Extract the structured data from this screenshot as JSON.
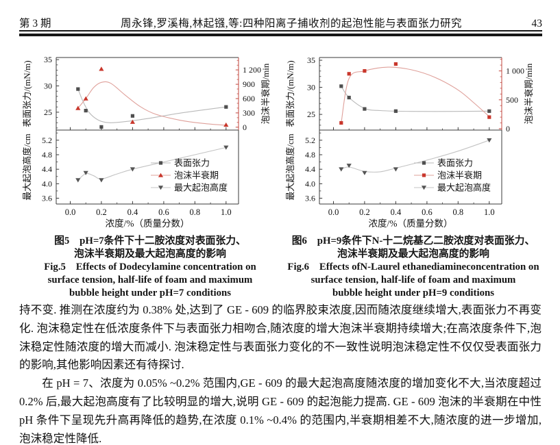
{
  "header": {
    "issue": "第 3 期",
    "running_title": "周永锋,罗溪梅,林起镪,等:四种阳离子捕收剂的起泡性能与表面张力研究",
    "page_number": "43"
  },
  "figures": [
    {
      "caption_cn": [
        "图5　pH=7条件下十二胺浓度对表面张力、",
        "泡沫半衰期及最大起泡高度的影响"
      ],
      "caption_en": [
        "Fig.5　Effects of Dodecylamine concentration on",
        "surface tension, half-life of foam and maximum",
        "bubble height under pH=7 conditions"
      ]
    },
    {
      "caption_cn": [
        "图6　pH=9条件下N-十二烷基乙二胺浓度对表面张力、",
        "泡沫半衰期及最大起泡高度的影响"
      ],
      "caption_en": [
        "Fig.6　Effects ofN-Laurel ethanediamineconcentration on",
        "surface tension, half-life of foam and maximum",
        "bubble height under pH=9 conditions"
      ]
    }
  ],
  "chart_data": [
    {
      "type": "line",
      "x_values": [
        0.05,
        0.1,
        0.2,
        0.4,
        1.0
      ],
      "xlabel": "浓度/%（质量分数）",
      "xlim": [
        -0.09,
        1.08
      ],
      "x_ticks": [
        0.0,
        0.2,
        0.4,
        0.6,
        0.8,
        1.0
      ],
      "x_tick_labels": [
        "0.0",
        "0.2",
        "0.4",
        "0.6",
        "0.8",
        "1.0"
      ],
      "x_minor_step": 0.1,
      "top_panel": {
        "left_axis": {
          "label": "表面张力/(mN/m)",
          "lim": [
            21.6,
            35.4
          ],
          "ticks": [
            25,
            30,
            35
          ],
          "tick_labels": [
            "25",
            "30",
            "35"
          ],
          "minor_step": 1,
          "color": "#3a3a3a"
        },
        "right_axis": {
          "label": "泡沫半衰期/min",
          "lim": [
            -60,
            1460
          ],
          "ticks": [
            0,
            300,
            600,
            900,
            1200
          ],
          "tick_labels": [
            "0",
            "300",
            "600",
            "900",
            "1 200"
          ],
          "minor_step": 100,
          "color": "#c0453c"
        },
        "series": [
          {
            "name": "表面张力",
            "axis": "left",
            "marker": "square",
            "marker_color": "#4f4f4f",
            "line_color": "#b9b9b9",
            "values": [
              29.4,
              25.3,
              22.2,
              24.3,
              26.0
            ],
            "curve": [
              [
                0.05,
                29.4
              ],
              [
                0.08,
                27.2
              ],
              [
                0.12,
                25.0
              ],
              [
                0.18,
                23.5
              ],
              [
                0.25,
                23.0
              ],
              [
                0.35,
                23.2
              ],
              [
                0.5,
                23.8
              ],
              [
                0.7,
                24.8
              ],
              [
                1.0,
                26.0
              ]
            ]
          },
          {
            "name": "泡沫半衰期",
            "axis": "right",
            "marker": "triangle-up",
            "marker_color": "#c9372c",
            "line_color": "#dfa09a",
            "values": [
              400,
              600,
              1220,
              110,
              50
            ],
            "curve": [
              [
                0.05,
                400
              ],
              [
                0.1,
                600
              ],
              [
                0.15,
                830
              ],
              [
                0.2,
                940
              ],
              [
                0.26,
                920
              ],
              [
                0.35,
                680
              ],
              [
                0.45,
                430
              ],
              [
                0.55,
                270
              ],
              [
                0.7,
                150
              ],
              [
                0.85,
                80
              ],
              [
                1.0,
                40
              ]
            ]
          }
        ]
      },
      "bottom_panel": {
        "left_axis": {
          "label": "最大起泡高度/cm",
          "lim": [
            3.44,
            5.48
          ],
          "ticks": [
            3.6,
            4.0,
            4.4,
            4.8,
            5.2
          ],
          "tick_labels": [
            "3.6",
            "4.0",
            "4.4",
            "4.8",
            "5.2"
          ],
          "minor_step": 0.2,
          "color": "#3a3a3a"
        },
        "series": [
          {
            "name": "最大起泡高度",
            "axis": "left",
            "marker": "triangle-down",
            "marker_color": "#555555",
            "line_color": "#c3c3c3",
            "values": [
              4.1,
              4.3,
              4.1,
              4.4,
              5.0
            ],
            "curve": [
              [
                0.05,
                4.1
              ],
              [
                0.1,
                4.28
              ],
              [
                0.15,
                4.22
              ],
              [
                0.2,
                4.13
              ],
              [
                0.3,
                4.27
              ],
              [
                0.4,
                4.4
              ],
              [
                0.6,
                4.6
              ],
              [
                0.8,
                4.8
              ],
              [
                1.0,
                5.0
              ]
            ]
          }
        ]
      }
    },
    {
      "type": "line",
      "x_values": [
        0.05,
        0.1,
        0.2,
        0.4,
        1.0
      ],
      "xlabel": "浓度/%（质量分数）",
      "xlim": [
        -0.09,
        1.08
      ],
      "x_ticks": [
        0.0,
        0.2,
        0.4,
        0.6,
        0.8,
        1.0
      ],
      "x_tick_labels": [
        "0.0",
        "0.2",
        "0.4",
        "0.6",
        "0.8",
        "1.0"
      ],
      "x_minor_step": 0.1,
      "top_panel": {
        "left_axis": {
          "label": "表面张力/(mN/m)",
          "lim": [
            22.1,
            35.5
          ],
          "ticks": [
            25,
            30,
            35
          ],
          "tick_labels": [
            "25",
            "30",
            "35"
          ],
          "minor_step": 1,
          "color": "#3a3a3a"
        },
        "right_axis": {
          "label": "泡沫半衰期/min",
          "lim": [
            -24,
            1232
          ],
          "ticks": [
            0,
            500,
            1000
          ],
          "tick_labels": [
            "0",
            "500",
            "1 000"
          ],
          "minor_step": 100,
          "color": "#c0453c"
        },
        "series": [
          {
            "name": "表面张力",
            "axis": "left",
            "marker": "square",
            "marker_color": "#4f4f4f",
            "line_color": "#b9b9b9",
            "values": [
              30.2,
              28.1,
              26.0,
              25.6,
              25.6
            ],
            "curve": [
              [
                0.05,
                30.2
              ],
              [
                0.1,
                28.1
              ],
              [
                0.2,
                26.1
              ],
              [
                0.3,
                25.7
              ],
              [
                0.5,
                25.55
              ],
              [
                0.8,
                25.55
              ],
              [
                1.0,
                25.6
              ]
            ]
          },
          {
            "name": "泡沫半衰期",
            "axis": "right",
            "marker": "square",
            "marker_color": "#c9372c",
            "line_color": "#dfa09a",
            "values": [
              100,
              950,
              1000,
              1120,
              200
            ],
            "curve": [
              [
                0.05,
                100
              ],
              [
                0.1,
                870
              ],
              [
                0.2,
                1000
              ],
              [
                0.35,
                1065
              ],
              [
                0.5,
                1020
              ],
              [
                0.65,
                890
              ],
              [
                0.8,
                670
              ],
              [
                0.9,
                450
              ],
              [
                1.0,
                210
              ]
            ]
          }
        ]
      },
      "bottom_panel": {
        "left_axis": {
          "label": "最大起泡高度/cm",
          "lim": [
            3.44,
            5.48
          ],
          "ticks": [
            3.6,
            4.0,
            4.4,
            4.8,
            5.2
          ],
          "tick_labels": [
            "3.6",
            "4.0",
            "4.4",
            "4.8",
            "5.2"
          ],
          "minor_step": 0.2,
          "color": "#3a3a3a"
        },
        "series": [
          {
            "name": "最大起泡高度",
            "axis": "left",
            "marker": "triangle-down",
            "marker_color": "#555555",
            "line_color": "#c3c3c3",
            "values": [
              4.4,
              4.5,
              4.3,
              4.4,
              5.2
            ],
            "curve": [
              [
                0.05,
                4.4
              ],
              [
                0.1,
                4.46
              ],
              [
                0.2,
                4.34
              ],
              [
                0.3,
                4.33
              ],
              [
                0.4,
                4.43
              ],
              [
                0.6,
                4.65
              ],
              [
                0.8,
                4.9
              ],
              [
                1.0,
                5.2
              ]
            ]
          }
        ]
      }
    }
  ],
  "body": {
    "paragraphs": [
      "持不变. 推测在浓度约为 0.38% 处,达到了 GE - 609 的临界胶束浓度,因而随浓度继续增大,表面张力不再变化. 泡沫稳定性在低浓度条件下与表面张力相吻合,随浓度的增大泡沫半衰期持续增大;在高浓度条件下,泡沫稳定性随浓度的增大而减小. 泡沫稳定性与表面张力变化的不一致性说明泡沫稳定性不仅仅受表面张力的影响,其他影响因素还有待探讨.",
      "在 pH = 7、浓度为 0.05% ~0.2% 范围内,GE - 609 的最大起泡高度随浓度的增加变化不大,当浓度超过 0.2% 后,最大起泡高度有了比较明显的增大,说明 GE - 609 的起泡能力提高. GE - 609 泡沫的半衰期在中性 pH 条件下呈现先升高再降低的趋势,在浓度 0.1% ~0.4% 的范围内,半衰期相差不大,随浓度的进一步增加,泡沫稳定性降低."
    ]
  }
}
